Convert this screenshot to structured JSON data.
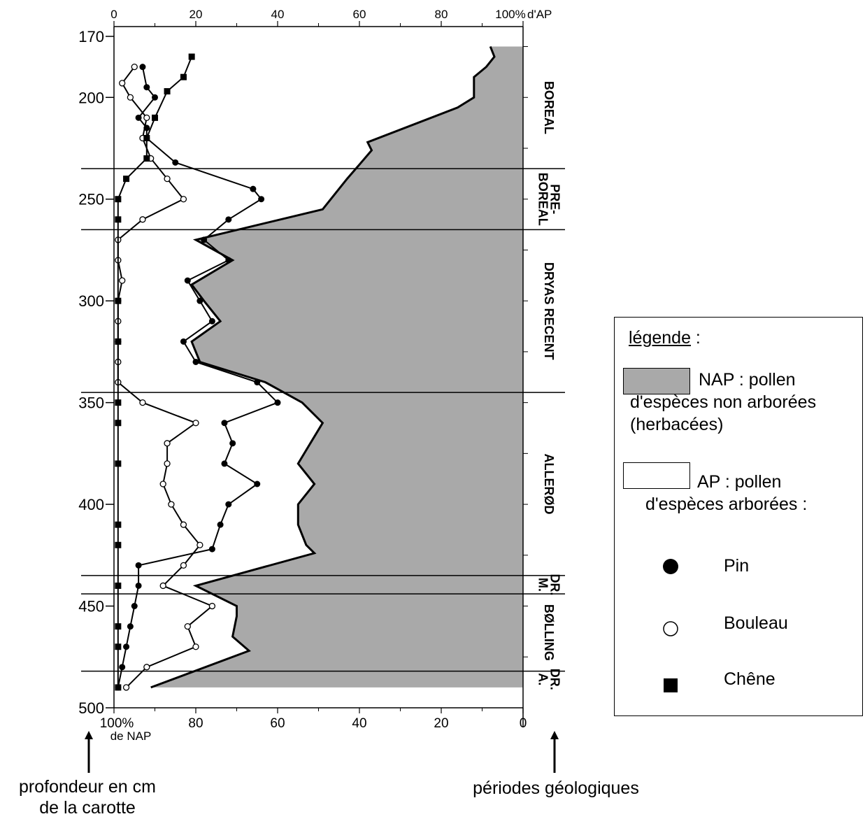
{
  "chart_data": {
    "type": "line",
    "title": "",
    "top_axis": {
      "label": "d'AP",
      "ticks": [
        "0",
        "20",
        "40",
        "60",
        "80",
        "100%"
      ],
      "range": [
        0,
        100
      ]
    },
    "bottom_axis": {
      "label": "de NAP",
      "ticks": [
        "100%",
        "80",
        "60",
        "40",
        "20",
        "0"
      ],
      "range": [
        100,
        0
      ]
    },
    "depth_axis": {
      "label": "profondeur en cm de la carotte",
      "ticks": [
        "170",
        "200",
        "250",
        "300",
        "350",
        "400",
        "450",
        "500"
      ],
      "range": [
        170,
        500
      ]
    },
    "periods_label": "périodes géologiques",
    "periods": [
      {
        "lines": [
          "BOREAL"
        ],
        "from": 175,
        "to": 235
      },
      {
        "lines": [
          "PRE-",
          "BOREAL"
        ],
        "from": 235,
        "to": 265
      },
      {
        "lines": [
          "DRYAS RECENT"
        ],
        "from": 265,
        "to": 345
      },
      {
        "lines": [
          "ALLERØD"
        ],
        "from": 345,
        "to": 435
      },
      {
        "lines": [
          "DR.",
          "M."
        ],
        "from": 435,
        "to": 444
      },
      {
        "lines": [
          "BØLLING"
        ],
        "from": 444,
        "to": 482
      },
      {
        "lines": [
          "DR.",
          "A."
        ],
        "from": 482,
        "to": 490
      }
    ],
    "ap_total": [
      {
        "depth": 175,
        "value": 92
      },
      {
        "depth": 180,
        "value": 93
      },
      {
        "depth": 185,
        "value": 91
      },
      {
        "depth": 190,
        "value": 88
      },
      {
        "depth": 200,
        "value": 88
      },
      {
        "depth": 205,
        "value": 84
      },
      {
        "depth": 222,
        "value": 62
      },
      {
        "depth": 226,
        "value": 63
      },
      {
        "depth": 233,
        "value": 60
      },
      {
        "depth": 240,
        "value": 57
      },
      {
        "depth": 250,
        "value": 53
      },
      {
        "depth": 255,
        "value": 51
      },
      {
        "depth": 270,
        "value": 20
      },
      {
        "depth": 280,
        "value": 29
      },
      {
        "depth": 292,
        "value": 19
      },
      {
        "depth": 300,
        "value": 22
      },
      {
        "depth": 310,
        "value": 26
      },
      {
        "depth": 320,
        "value": 19
      },
      {
        "depth": 330,
        "value": 21
      },
      {
        "depth": 340,
        "value": 37
      },
      {
        "depth": 350,
        "value": 46
      },
      {
        "depth": 360,
        "value": 51
      },
      {
        "depth": 370,
        "value": 48
      },
      {
        "depth": 380,
        "value": 45
      },
      {
        "depth": 390,
        "value": 49
      },
      {
        "depth": 400,
        "value": 45
      },
      {
        "depth": 410,
        "value": 45
      },
      {
        "depth": 420,
        "value": 47
      },
      {
        "depth": 424,
        "value": 49
      },
      {
        "depth": 440,
        "value": 20
      },
      {
        "depth": 450,
        "value": 30
      },
      {
        "depth": 455,
        "value": 30
      },
      {
        "depth": 465,
        "value": 29
      },
      {
        "depth": 472,
        "value": 33
      },
      {
        "depth": 490,
        "value": 9
      }
    ],
    "series": [
      {
        "name": "Pin",
        "marker": "filled-circle",
        "points": [
          {
            "depth": 185,
            "value": 7
          },
          {
            "depth": 195,
            "value": 8
          },
          {
            "depth": 200,
            "value": 10
          },
          {
            "depth": 210,
            "value": 6
          },
          {
            "depth": 215,
            "value": 8
          },
          {
            "depth": 220,
            "value": 8
          },
          {
            "depth": 232,
            "value": 15
          },
          {
            "depth": 245,
            "value": 34
          },
          {
            "depth": 250,
            "value": 36
          },
          {
            "depth": 260,
            "value": 28
          },
          {
            "depth": 270,
            "value": 22
          },
          {
            "depth": 280,
            "value": 28
          },
          {
            "depth": 290,
            "value": 18
          },
          {
            "depth": 300,
            "value": 21
          },
          {
            "depth": 310,
            "value": 24
          },
          {
            "depth": 320,
            "value": 17
          },
          {
            "depth": 330,
            "value": 20
          },
          {
            "depth": 340,
            "value": 35
          },
          {
            "depth": 350,
            "value": 40
          },
          {
            "depth": 360,
            "value": 27
          },
          {
            "depth": 370,
            "value": 29
          },
          {
            "depth": 380,
            "value": 27
          },
          {
            "depth": 390,
            "value": 35
          },
          {
            "depth": 400,
            "value": 28
          },
          {
            "depth": 410,
            "value": 26
          },
          {
            "depth": 422,
            "value": 24
          },
          {
            "depth": 430,
            "value": 6
          },
          {
            "depth": 440,
            "value": 6
          },
          {
            "depth": 450,
            "value": 5
          },
          {
            "depth": 460,
            "value": 4
          },
          {
            "depth": 470,
            "value": 3
          },
          {
            "depth": 480,
            "value": 2
          },
          {
            "depth": 490,
            "value": 1
          }
        ]
      },
      {
        "name": "Bouleau",
        "marker": "open-circle",
        "points": [
          {
            "depth": 185,
            "value": 5
          },
          {
            "depth": 193,
            "value": 2
          },
          {
            "depth": 200,
            "value": 4
          },
          {
            "depth": 210,
            "value": 8
          },
          {
            "depth": 220,
            "value": 7
          },
          {
            "depth": 230,
            "value": 9
          },
          {
            "depth": 240,
            "value": 13
          },
          {
            "depth": 250,
            "value": 17
          },
          {
            "depth": 260,
            "value": 7
          },
          {
            "depth": 270,
            "value": 1
          },
          {
            "depth": 280,
            "value": 1
          },
          {
            "depth": 290,
            "value": 2
          },
          {
            "depth": 300,
            "value": 1
          },
          {
            "depth": 310,
            "value": 1
          },
          {
            "depth": 320,
            "value": 1
          },
          {
            "depth": 330,
            "value": 1
          },
          {
            "depth": 340,
            "value": 1
          },
          {
            "depth": 350,
            "value": 7
          },
          {
            "depth": 360,
            "value": 20
          },
          {
            "depth": 370,
            "value": 13
          },
          {
            "depth": 380,
            "value": 13
          },
          {
            "depth": 390,
            "value": 12
          },
          {
            "depth": 400,
            "value": 14
          },
          {
            "depth": 410,
            "value": 17
          },
          {
            "depth": 420,
            "value": 21
          },
          {
            "depth": 430,
            "value": 17
          },
          {
            "depth": 440,
            "value": 12
          },
          {
            "depth": 450,
            "value": 24
          },
          {
            "depth": 460,
            "value": 18
          },
          {
            "depth": 470,
            "value": 20
          },
          {
            "depth": 480,
            "value": 8
          },
          {
            "depth": 490,
            "value": 3
          }
        ]
      },
      {
        "name": "Chêne",
        "marker": "filled-square",
        "points": [
          {
            "depth": 180,
            "value": 19
          },
          {
            "depth": 190,
            "value": 17
          },
          {
            "depth": 197,
            "value": 13
          },
          {
            "depth": 210,
            "value": 10
          },
          {
            "depth": 220,
            "value": 8
          },
          {
            "depth": 230,
            "value": 8
          },
          {
            "depth": 240,
            "value": 3
          },
          {
            "depth": 250,
            "value": 1
          },
          {
            "depth": 260,
            "value": 1
          },
          {
            "depth": 300,
            "value": 1
          },
          {
            "depth": 320,
            "value": 1
          },
          {
            "depth": 350,
            "value": 1
          },
          {
            "depth": 360,
            "value": 1
          },
          {
            "depth": 380,
            "value": 1
          },
          {
            "depth": 410,
            "value": 1
          },
          {
            "depth": 420,
            "value": 1
          },
          {
            "depth": 440,
            "value": 1
          },
          {
            "depth": 460,
            "value": 1
          },
          {
            "depth": 470,
            "value": 1
          },
          {
            "depth": 490,
            "value": 1
          }
        ]
      }
    ],
    "legend": {
      "title": "légende",
      "title_suffix": " :",
      "nap_lines": [
        "NAP : pollen",
        "d'espèces non arborées",
        "(herbacées)"
      ],
      "ap_lines": [
        "AP : pollen",
        "d'espèces arborées :"
      ],
      "nap_color": "#a9a9a9",
      "placement": "right"
    },
    "colors": {
      "nap_fill": "#a9a9a9",
      "lines": "#000000"
    }
  },
  "annotations": {
    "depth_lines": [
      "profondeur en cm",
      "de la carotte"
    ],
    "periods_text": "périodes géologiques"
  }
}
